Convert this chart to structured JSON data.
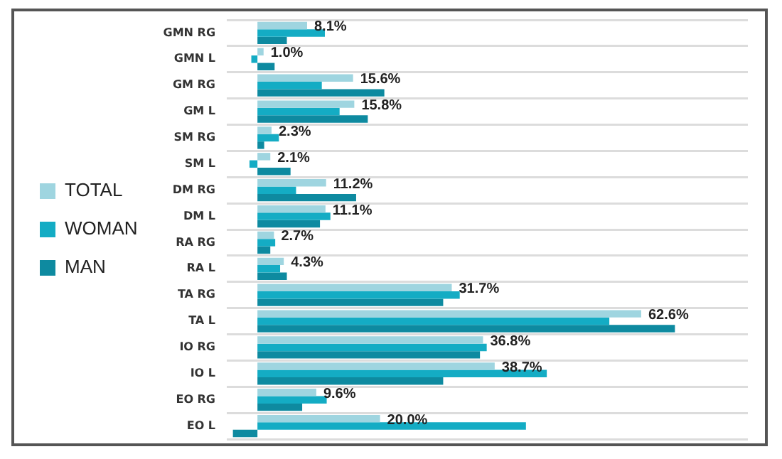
{
  "chart_data": {
    "type": "bar",
    "orientation": "horizontal",
    "categories": [
      "GMN RG",
      "GMN L",
      "GM RG",
      "GM L",
      "SM RG",
      "SM L",
      "DM RG",
      "DM L",
      "RA RG",
      "RA L",
      "TA RG",
      "TA L",
      "IO RG",
      "IO L",
      "EO RG",
      "EO L"
    ],
    "xlim": [
      -5,
      80
    ],
    "grid": "y",
    "legend": "left",
    "series": [
      {
        "name": "TOTAL",
        "color": "#9fd5e0",
        "values": [
          8.1,
          1.0,
          15.6,
          15.8,
          2.3,
          2.1,
          11.2,
          11.1,
          2.7,
          4.3,
          31.7,
          62.6,
          36.8,
          38.7,
          9.6,
          20.0
        ],
        "value_labels": [
          "8.1%",
          "1.0%",
          "15.6%",
          "15.8%",
          "2.3%",
          "2.1%",
          "11.2%",
          "11.1%",
          "2.7%",
          "4.3%",
          "31.7%",
          "62.6%",
          "36.8%",
          "38.7%",
          "9.6%",
          "20.0%"
        ]
      },
      {
        "name": "WOMAN",
        "color": "#14acc4",
        "values": [
          11.0,
          -1.0,
          10.5,
          13.4,
          3.5,
          -1.3,
          6.3,
          11.9,
          2.9,
          3.7,
          33.0,
          57.4,
          37.4,
          47.2,
          11.3,
          43.8
        ]
      },
      {
        "name": "MAN",
        "color": "#0e8aa0",
        "values": [
          4.8,
          2.8,
          20.7,
          18.0,
          1.1,
          5.4,
          16.1,
          10.2,
          2.1,
          4.8,
          30.3,
          68.1,
          36.3,
          30.3,
          7.3,
          -4.0
        ]
      }
    ]
  }
}
